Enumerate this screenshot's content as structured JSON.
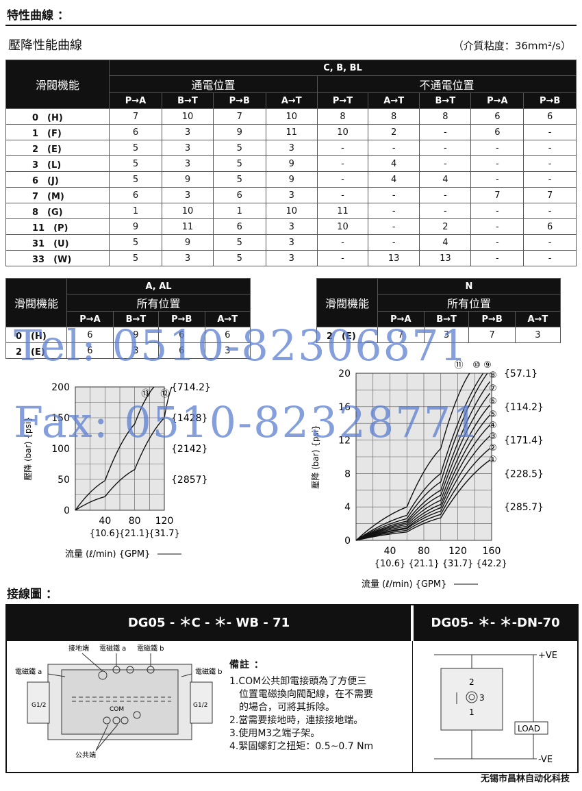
{
  "header": {
    "title": "特性曲線 ：",
    "subtitle": "壓降性能曲線",
    "medium": "（介質粘度：36mm²/s）"
  },
  "table1": {
    "func_label": "滑閥機能",
    "group": "C, B, BL",
    "energized": "通電位置",
    "deenergized": "不通電位置",
    "cols": [
      "P→A",
      "B→T",
      "P→B",
      "A→T",
      "P→T",
      "A→T",
      "B→T",
      "P→A",
      "P→B"
    ],
    "rows": [
      {
        "label": "0　(H)",
        "v": [
          "7",
          "10",
          "7",
          "10",
          "8",
          "8",
          "8",
          "6",
          "6"
        ]
      },
      {
        "label": "1　(F)",
        "v": [
          "6",
          "3",
          "9",
          "11",
          "10",
          "2",
          "-",
          "6",
          "-"
        ]
      },
      {
        "label": "2　(E)",
        "v": [
          "5",
          "3",
          "5",
          "3",
          "-",
          "-",
          "-",
          "-",
          "-"
        ]
      },
      {
        "label": "3　(L)",
        "v": [
          "5",
          "3",
          "5",
          "9",
          "-",
          "4",
          "-",
          "-",
          "-"
        ]
      },
      {
        "label": "6　(J)",
        "v": [
          "5",
          "9",
          "5",
          "9",
          "-",
          "4",
          "4",
          "-",
          "-"
        ]
      },
      {
        "label": "7　(M)",
        "v": [
          "6",
          "3",
          "6",
          "3",
          "-",
          "-",
          "-",
          "7",
          "7"
        ]
      },
      {
        "label": "8　(G)",
        "v": [
          "1",
          "10",
          "1",
          "10",
          "11",
          "-",
          "-",
          "-",
          "-"
        ]
      },
      {
        "label": "11　(P)",
        "v": [
          "9",
          "11",
          "6",
          "3",
          "10",
          "-",
          "2",
          "-",
          "6"
        ]
      },
      {
        "label": "31　(U)",
        "v": [
          "5",
          "9",
          "5",
          "3",
          "-",
          "-",
          "4",
          "-",
          "-"
        ]
      },
      {
        "label": "33　(W)",
        "v": [
          "5",
          "3",
          "5",
          "3",
          "-",
          "13",
          "13",
          "-",
          "-"
        ]
      }
    ]
  },
  "table2": {
    "func_label": "滑閥機能",
    "group": "A, AL",
    "position": "所有位置",
    "cols": [
      "P→A",
      "B→T",
      "P→B",
      "A→T"
    ],
    "rows": [
      {
        "label": "0　(H)",
        "v": [
          "6",
          "9",
          "6",
          "6"
        ]
      },
      {
        "label": "2　(E)",
        "v": [
          "6",
          "3",
          "6",
          "3"
        ]
      }
    ]
  },
  "table3": {
    "func_label": "滑閥機能",
    "group": "N",
    "position": "所有位置",
    "cols": [
      "P→A",
      "B→T",
      "P→B",
      "A→T"
    ],
    "rows": [
      {
        "label": "2　(E)",
        "v": [
          "7",
          "3",
          "7",
          "3"
        ]
      }
    ]
  },
  "watermark": {
    "tel": "Tel: 0510-82306871",
    "fax": "Fax: 0510-82328771"
  },
  "chart_data": [
    {
      "type": "line",
      "ylabel": "壓降 (bar) {psi}",
      "xlabel": "流量 (ℓ/min) {GPM}",
      "xticks": [
        "40",
        "80",
        "120"
      ],
      "xticks_gpm": [
        "{10.6}",
        "{21.1}",
        "{31.7}"
      ],
      "yticks": [
        "0",
        "50",
        "100",
        "150",
        "200"
      ],
      "yticks_psi": [
        "{714.2}",
        "{1428}",
        "{2142}",
        "{2857}"
      ],
      "xlim": [
        0,
        120
      ],
      "ylim": [
        0,
        200
      ],
      "series": [
        {
          "name": "⑬",
          "x": [
            0,
            40,
            80,
            106
          ],
          "y": [
            0,
            48,
            140,
            200
          ]
        },
        {
          "name": "⑫",
          "x": [
            0,
            40,
            80,
            120,
            130
          ],
          "y": [
            0,
            22,
            66,
            150,
            200
          ]
        }
      ]
    },
    {
      "type": "line",
      "ylabel": "壓降 (bar) {psi}",
      "xlabel": "流量 (ℓ/min) {GPM}",
      "xticks": [
        "40",
        "80",
        "120",
        "160"
      ],
      "xticks_gpm": [
        "{10.6}",
        "{21.1}",
        "{31.7}",
        "{42.2}"
      ],
      "yticks": [
        "0",
        "4",
        "8",
        "12",
        "16",
        "20"
      ],
      "yticks_psi": [
        "{57.1}",
        "{114.2}",
        "{171.4}",
        "{228.5}",
        "{285.7}"
      ],
      "xlim": [
        0,
        160
      ],
      "ylim": [
        0,
        20
      ],
      "series": [
        {
          "name": "⑪",
          "x": [
            0,
            60,
            100,
            134
          ],
          "y": [
            0,
            4,
            11,
            20
          ]
        },
        {
          "name": "⑩",
          "x": [
            0,
            60,
            100,
            150
          ],
          "y": [
            0,
            3,
            8,
            20
          ]
        },
        {
          "name": "⑨",
          "x": [
            0,
            60,
            100,
            155
          ],
          "y": [
            0,
            2.6,
            7,
            20
          ]
        },
        {
          "name": "⑧",
          "x": [
            0,
            60,
            100,
            158
          ],
          "y": [
            0,
            2.3,
            6,
            19
          ]
        },
        {
          "name": "⑦",
          "x": [
            0,
            60,
            100,
            158
          ],
          "y": [
            0,
            2.1,
            5.4,
            17.6
          ]
        },
        {
          "name": "⑥",
          "x": [
            0,
            60,
            100,
            158
          ],
          "y": [
            0,
            1.9,
            4.8,
            16.2
          ]
        },
        {
          "name": "⑤",
          "x": [
            0,
            60,
            100,
            158
          ],
          "y": [
            0,
            1.7,
            4.3,
            15
          ]
        },
        {
          "name": "④",
          "x": [
            0,
            60,
            100,
            158
          ],
          "y": [
            0,
            1.5,
            3.9,
            13.8
          ]
        },
        {
          "name": "③",
          "x": [
            0,
            60,
            100,
            158
          ],
          "y": [
            0,
            1.4,
            3.5,
            12.5
          ]
        },
        {
          "name": "②",
          "x": [
            0,
            60,
            100,
            158
          ],
          "y": [
            0,
            1.2,
            3.1,
            11
          ]
        },
        {
          "name": "①",
          "x": [
            0,
            60,
            100,
            158
          ],
          "y": [
            0,
            1.0,
            2.7,
            9.6
          ]
        }
      ]
    }
  ],
  "wiring": {
    "title": "接線圖 ：",
    "left_title": "DG05 - ＊C - ＊- WB - 71",
    "right_title": "DG05- ＊- ＊-DN-70",
    "labels": {
      "ground": "接地端",
      "coil_a": "電磁鐵 a",
      "coil_b": "電磁鐵 b",
      "coil_a2": "電磁鐵 a",
      "coil_b2": "電磁鐵 b",
      "com": "COM",
      "common": "公共端",
      "g12": "G1/2"
    },
    "notes_title": "備註 ：",
    "notes": [
      "1.COM公共卸電接頭為了方便三",
      "　位置電磁換向閥配線，在不需要",
      "　的場合，可將其拆除。",
      "2.當需要接地時，連接接地端。",
      "3.使用M3之端子架。",
      "4.緊固螺釘之扭矩：0.5~0.7 Nm"
    ],
    "right": {
      "pve": "+VE",
      "nve": "-VE",
      "load": "LOAD",
      "pin1": "1",
      "pin2": "2",
      "pin3": "3"
    }
  },
  "footer": "无锡市昌林自动化科技"
}
